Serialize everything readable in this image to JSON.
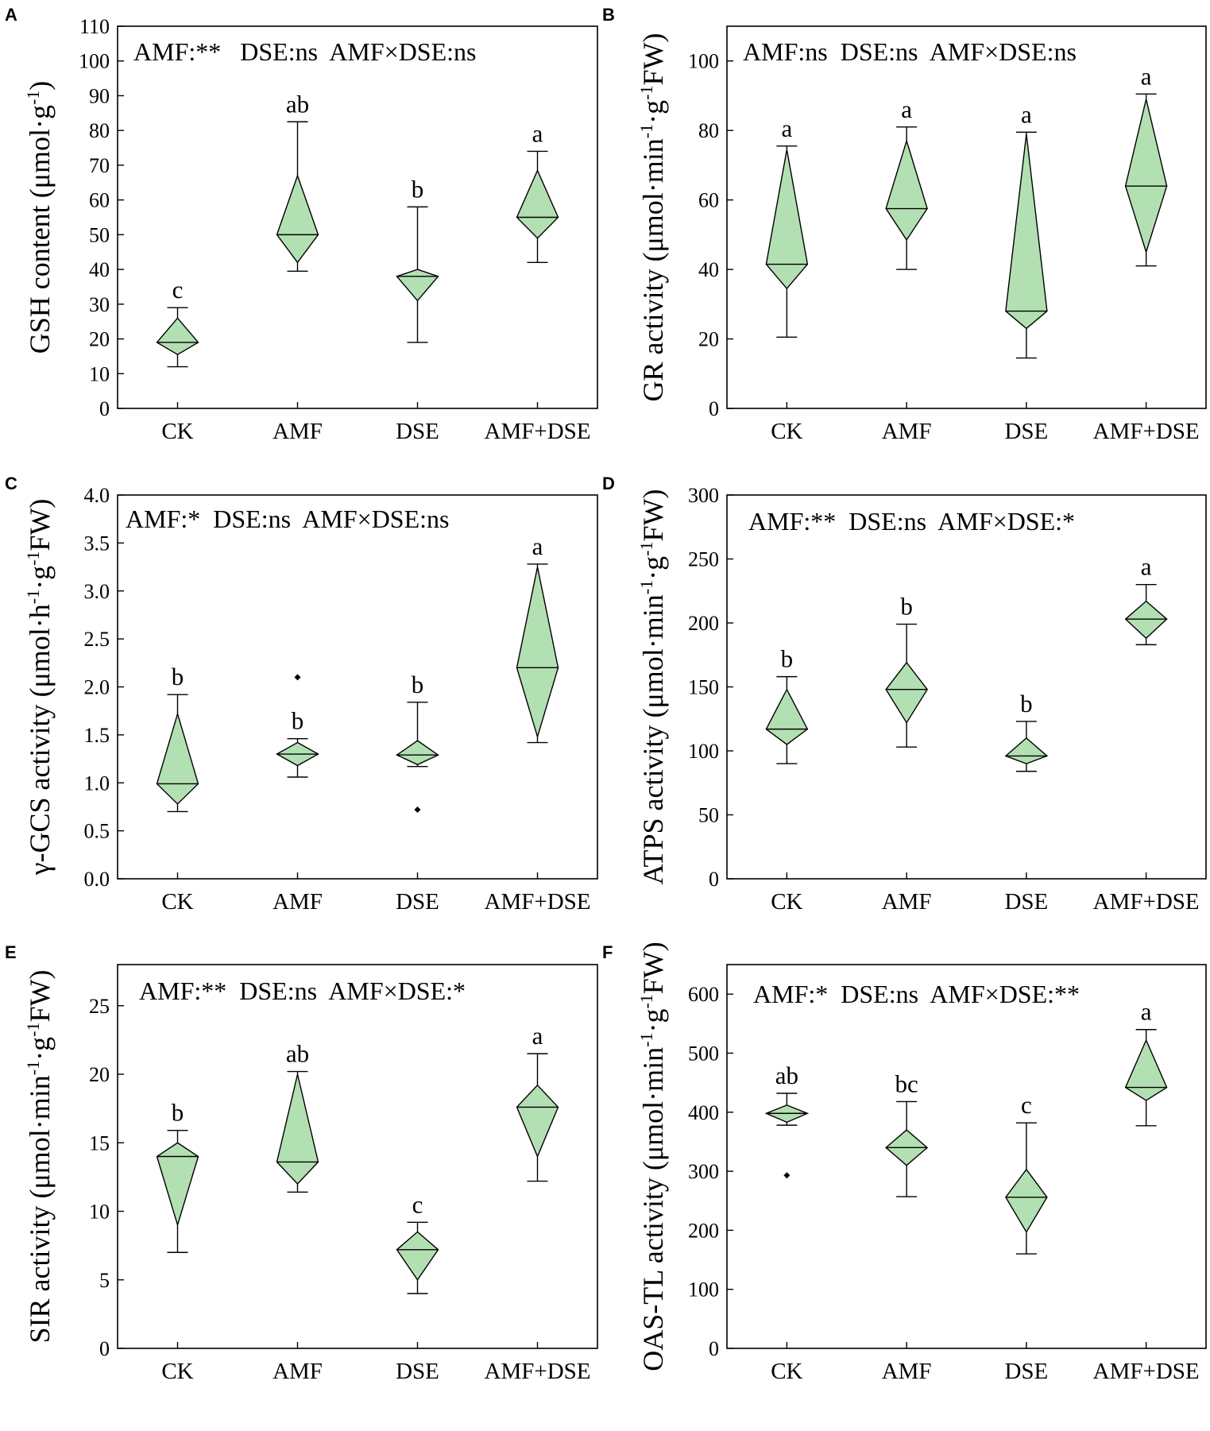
{
  "figure": {
    "background": "#ffffff",
    "fill_color": "#b3e0b3",
    "stroke_color": "#000000"
  },
  "chart_data": [
    {
      "panel": "A",
      "type": "diamond_box",
      "categories": [
        "CK",
        "AMF",
        "DSE",
        "AMF+DSE"
      ],
      "ylabel": {
        "main": "GSH content (μmol·g",
        "sup": "-1",
        "end": ")"
      },
      "ylim": [
        0,
        110
      ],
      "yticks": [
        0,
        10,
        20,
        30,
        40,
        50,
        60,
        70,
        80,
        90,
        100,
        110
      ],
      "annotation": "AMF:**   DSE:ns  AMF×DSE:ns",
      "groups": [
        {
          "whisker_low": 12,
          "q1": 15.5,
          "median": 19,
          "q3": 26,
          "whisker_high": 29,
          "letter": "c",
          "outliers": []
        },
        {
          "whisker_low": 39.5,
          "q1": 42,
          "median": 50,
          "q3": 67,
          "whisker_high": 82.5,
          "letter": "ab",
          "outliers": []
        },
        {
          "whisker_low": 19,
          "q1": 31,
          "median": 38,
          "q3": 40,
          "whisker_high": 58,
          "letter": "b",
          "outliers": []
        },
        {
          "whisker_low": 42,
          "q1": 49,
          "median": 55,
          "q3": 68.5,
          "whisker_high": 74,
          "letter": "a",
          "outliers": []
        }
      ]
    },
    {
      "panel": "B",
      "type": "diamond_box",
      "categories": [
        "CK",
        "AMF",
        "DSE",
        "AMF+DSE"
      ],
      "ylabel": {
        "main": "GR activity (μmol·min",
        "sup": "-1",
        "mid": "·g",
        "sup2": "-1",
        "end": "FW)"
      },
      "ylim": [
        0,
        110
      ],
      "yticks": [
        0,
        20,
        40,
        60,
        80,
        100
      ],
      "annotation": "AMF:ns  DSE:ns  AMF×DSE:ns",
      "groups": [
        {
          "whisker_low": 20.5,
          "q1": 34.5,
          "median": 41.5,
          "q3": 74.5,
          "whisker_high": 75.5,
          "letter": "a",
          "outliers": []
        },
        {
          "whisker_low": 40,
          "q1": 48.5,
          "median": 57.5,
          "q3": 77,
          "whisker_high": 81,
          "letter": "a",
          "outliers": []
        },
        {
          "whisker_low": 14.5,
          "q1": 23,
          "median": 28,
          "q3": 79,
          "whisker_high": 79.5,
          "letter": "a",
          "outliers": []
        },
        {
          "whisker_low": 41,
          "q1": 45,
          "median": 64,
          "q3": 89,
          "whisker_high": 90.5,
          "letter": "a",
          "outliers": []
        }
      ]
    },
    {
      "panel": "C",
      "type": "diamond_box",
      "categories": [
        "CK",
        "AMF",
        "DSE",
        "AMF+DSE"
      ],
      "ylabel": {
        "main": "γ-GCS activity (μmol·h",
        "sup": "-1",
        "mid": "·g",
        "sup2": "-1",
        "end": "FW)"
      },
      "ylim": [
        0,
        4.0
      ],
      "yticks": [
        0.0,
        0.5,
        1.0,
        1.5,
        2.0,
        2.5,
        3.0,
        3.5,
        4.0
      ],
      "tick_decimals": 1,
      "annotation": "AMF:*  DSE:ns  AMF×DSE:ns",
      "groups": [
        {
          "whisker_low": 0.7,
          "q1": 0.78,
          "median": 0.99,
          "q3": 1.72,
          "whisker_high": 1.92,
          "letter": "b",
          "outliers": []
        },
        {
          "whisker_low": 1.06,
          "q1": 1.18,
          "median": 1.3,
          "q3": 1.42,
          "whisker_high": 1.46,
          "letter": "b",
          "outliers": [
            2.1
          ]
        },
        {
          "whisker_low": 1.17,
          "q1": 1.19,
          "median": 1.29,
          "q3": 1.44,
          "whisker_high": 1.84,
          "letter": "b",
          "outliers": [
            0.72
          ]
        },
        {
          "whisker_low": 1.42,
          "q1": 1.48,
          "median": 2.2,
          "q3": 3.25,
          "whisker_high": 3.28,
          "letter": "a",
          "outliers": []
        }
      ]
    },
    {
      "panel": "D",
      "type": "diamond_box",
      "categories": [
        "CK",
        "AMF",
        "DSE",
        "AMF+DSE"
      ],
      "ylabel": {
        "main": "ATPS activity (μmol·min",
        "sup": "-1",
        "mid": "·g",
        "sup2": "-1",
        "end": "FW)"
      },
      "ylim": [
        0,
        300
      ],
      "yticks": [
        0,
        50,
        100,
        150,
        200,
        250,
        300
      ],
      "annotation": "AMF:**  DSE:ns  AMF×DSE:*",
      "groups": [
        {
          "whisker_low": 90,
          "q1": 105,
          "median": 117,
          "q3": 148,
          "whisker_high": 158,
          "letter": "b",
          "outliers": []
        },
        {
          "whisker_low": 103,
          "q1": 122,
          "median": 148,
          "q3": 169,
          "whisker_high": 199,
          "letter": "b",
          "outliers": []
        },
        {
          "whisker_low": 84,
          "q1": 90,
          "median": 96,
          "q3": 110,
          "whisker_high": 123,
          "letter": "b",
          "outliers": []
        },
        {
          "whisker_low": 183,
          "q1": 188,
          "median": 203,
          "q3": 217,
          "whisker_high": 230,
          "letter": "a",
          "outliers": []
        }
      ]
    },
    {
      "panel": "E",
      "type": "diamond_box",
      "categories": [
        "CK",
        "AMF",
        "DSE",
        "AMF+DSE"
      ],
      "ylabel": {
        "main": "SIR activity (μmol·min",
        "sup": "-1",
        "mid": "·g",
        "sup2": "-1",
        "end": "FW)"
      },
      "ylim": [
        0,
        28
      ],
      "yticks": [
        0,
        5,
        10,
        15,
        20,
        25
      ],
      "annotation": "AMF:**  DSE:ns  AMF×DSE:*",
      "groups": [
        {
          "whisker_low": 7,
          "q1": 9,
          "median": 14,
          "q3": 15,
          "whisker_high": 15.9,
          "letter": "b",
          "outliers": []
        },
        {
          "whisker_low": 11.4,
          "q1": 12,
          "median": 13.6,
          "q3": 20,
          "whisker_high": 20.2,
          "letter": "ab",
          "outliers": []
        },
        {
          "whisker_low": 4,
          "q1": 5,
          "median": 7.2,
          "q3": 8.5,
          "whisker_high": 9.2,
          "letter": "c",
          "outliers": []
        },
        {
          "whisker_low": 12.2,
          "q1": 14,
          "median": 17.6,
          "q3": 19.2,
          "whisker_high": 21.5,
          "letter": "a",
          "outliers": []
        }
      ]
    },
    {
      "panel": "F",
      "type": "diamond_box",
      "categories": [
        "CK",
        "AMF",
        "DSE",
        "AMF+DSE"
      ],
      "ylabel": {
        "main": "OAS-TL activity (μmol·min",
        "sup": "-1",
        "mid": "·g",
        "sup2": "-1",
        "end": "FW)"
      },
      "ylim": [
        0,
        650
      ],
      "yticks": [
        0,
        100,
        200,
        300,
        400,
        500,
        600
      ],
      "annotation": "AMF:*  DSE:ns  AMF×DSE:**",
      "groups": [
        {
          "whisker_low": 378,
          "q1": 383,
          "median": 398,
          "q3": 412,
          "whisker_high": 432,
          "letter": "ab",
          "outliers": [
            293
          ]
        },
        {
          "whisker_low": 257,
          "q1": 310,
          "median": 340,
          "q3": 370,
          "whisker_high": 418,
          "letter": "bc",
          "outliers": []
        },
        {
          "whisker_low": 160,
          "q1": 197,
          "median": 256,
          "q3": 303,
          "whisker_high": 382,
          "letter": "c",
          "outliers": []
        },
        {
          "whisker_low": 377,
          "q1": 420,
          "median": 442,
          "q3": 522,
          "whisker_high": 540,
          "letter": "a",
          "outliers": []
        }
      ]
    }
  ]
}
